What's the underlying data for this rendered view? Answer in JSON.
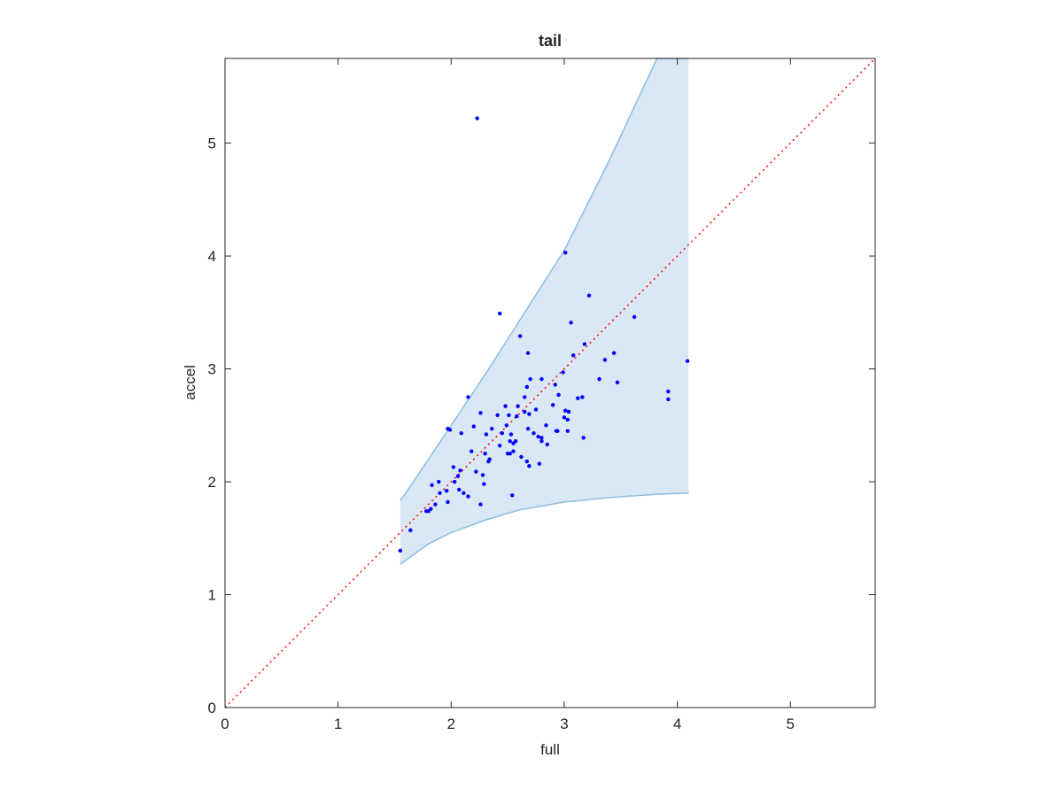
{
  "chart_data": {
    "type": "scatter",
    "title": "tail",
    "x_label": "full",
    "y_label": "accel",
    "xlim": [
      0,
      5.75
    ],
    "ylim": [
      0,
      5.75
    ],
    "xticks": [
      0,
      1,
      2,
      3,
      4,
      5
    ],
    "yticks": [
      0,
      1,
      2,
      3,
      4,
      5
    ],
    "color": "#0000ff",
    "diagonal": {
      "color": "#ff0000"
    },
    "band": {
      "fill": "#d9e8f4",
      "edge": "#8dbde0",
      "x": [
        1.55,
        1.8,
        2.0,
        2.3,
        2.6,
        3.0,
        3.4,
        3.82,
        4.1
      ],
      "upper": [
        1.83,
        2.2,
        2.5,
        2.95,
        3.42,
        4.05,
        4.85,
        5.75,
        5.75
      ],
      "lower": [
        1.27,
        1.45,
        1.55,
        1.66,
        1.75,
        1.82,
        1.86,
        1.89,
        1.9
      ]
    },
    "x": [
      1.55,
      1.64,
      1.78,
      1.8,
      1.82,
      1.86,
      1.83,
      1.89,
      1.9,
      1.96,
      1.97,
      1.97,
      1.99,
      2.02,
      2.03,
      2.06,
      2.08,
      2.07,
      2.11,
      2.09,
      2.15,
      2.15,
      2.18,
      2.2,
      2.22,
      2.23,
      2.26,
      2.26,
      2.28,
      2.3,
      2.29,
      2.31,
      2.33,
      2.34,
      2.36,
      2.41,
      2.43,
      2.43,
      2.45,
      2.48,
      2.49,
      2.5,
      2.51,
      2.52,
      2.52,
      2.53,
      2.55,
      2.55,
      2.57,
      2.54,
      2.58,
      2.59,
      2.61,
      2.62,
      2.65,
      2.65,
      2.67,
      2.68,
      2.67,
      2.68,
      2.69,
      2.69,
      2.7,
      2.73,
      2.75,
      2.77,
      2.78,
      2.8,
      2.8,
      2.8,
      2.84,
      2.85,
      2.9,
      2.92,
      2.95,
      2.93,
      2.94,
      2.99,
      3.0,
      3.01,
      3.03,
      3.03,
      3.04,
      3.01,
      3.06,
      3.08,
      3.12,
      3.16,
      3.18,
      3.17,
      3.22,
      3.31,
      3.36,
      3.44,
      3.47,
      3.62,
      3.92,
      3.92,
      4.09
    ],
    "y": [
      1.39,
      1.57,
      1.74,
      1.74,
      1.76,
      1.8,
      1.97,
      2.0,
      1.9,
      1.92,
      1.82,
      2.47,
      2.46,
      2.13,
      2.0,
      2.05,
      2.1,
      1.93,
      1.9,
      2.43,
      2.75,
      1.87,
      2.27,
      2.49,
      2.09,
      5.22,
      2.61,
      1.8,
      2.06,
      2.25,
      1.98,
      2.42,
      2.18,
      2.2,
      2.47,
      2.59,
      3.49,
      2.32,
      2.43,
      2.67,
      2.5,
      2.25,
      2.59,
      2.36,
      2.25,
      2.42,
      2.34,
      2.27,
      2.36,
      1.88,
      2.58,
      2.67,
      3.29,
      2.22,
      2.62,
      2.75,
      2.84,
      3.14,
      2.18,
      2.47,
      2.14,
      2.6,
      2.91,
      2.43,
      2.64,
      2.4,
      2.16,
      2.39,
      2.36,
      2.91,
      2.5,
      2.33,
      2.68,
      2.86,
      2.77,
      2.45,
      2.45,
      2.97,
      2.57,
      2.63,
      2.55,
      2.45,
      2.62,
      4.03,
      3.41,
      3.12,
      2.74,
      2.75,
      3.22,
      2.39,
      3.65,
      2.91,
      3.08,
      3.14,
      2.88,
      3.46,
      2.8,
      2.73,
      3.07
    ]
  }
}
